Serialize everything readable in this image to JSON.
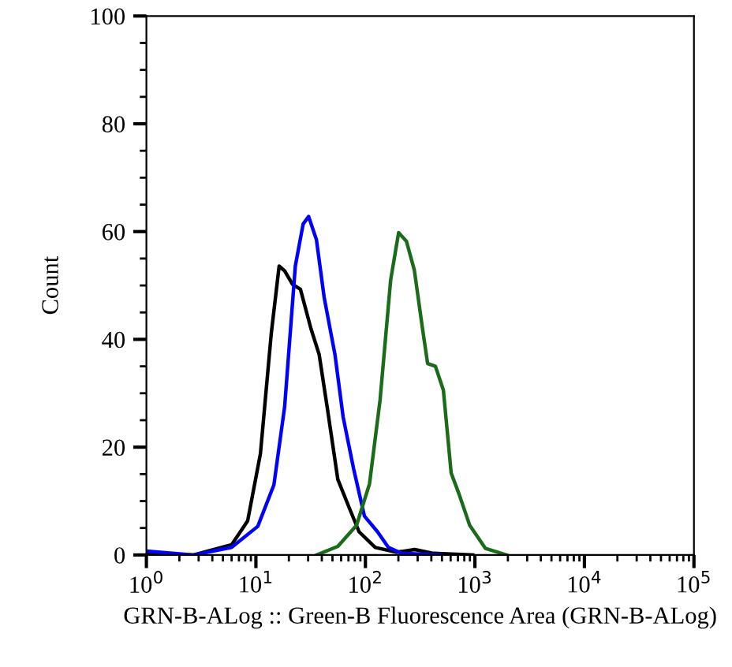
{
  "chart_data": {
    "type": "line",
    "xlabel": "GRN-B-ALog :: Green-B Fluorescence Area (GRN-B-ALog)",
    "ylabel": "Count",
    "log": "x",
    "xlim": [
      1,
      100000
    ],
    "ylim": [
      0,
      100
    ],
    "xticks": [
      {
        "value": 1,
        "label": "10$^{0}$"
      },
      {
        "value": 10,
        "label": "10$^{1}$"
      },
      {
        "value": 100,
        "label": "10$^{2}$"
      },
      {
        "value": 1000,
        "label": "10$^{3}$"
      },
      {
        "value": 10000,
        "label": "10$^{4}$"
      },
      {
        "value": 100000,
        "label": "10$^{5}$"
      }
    ],
    "yticks": [
      0,
      20,
      40,
      60,
      80,
      100
    ],
    "grid": false,
    "legend": false,
    "marker": "none",
    "line_style": "solid",
    "series": [
      {
        "color": "#000000",
        "x": [
          1,
          2.7,
          6.0,
          8.4,
          11,
          13.8,
          16.3,
          18.3,
          21.6,
          25.5,
          31.8,
          37.8,
          44.7,
          56,
          69.7,
          87.5,
          123,
          191,
          282,
          417,
          955
        ],
        "values": [
          0.3,
          0,
          1.9,
          6.3,
          18.8,
          41,
          53.6,
          52.7,
          50.2,
          49.3,
          42,
          37.2,
          27.5,
          14,
          9.2,
          4.3,
          1.4,
          0.5,
          1.0,
          0.3,
          0
        ]
      },
      {
        "color": "#0000ff",
        "x": [
          1,
          2.7,
          6.0,
          10.4,
          14.6,
          18.3,
          22.9,
          27,
          30.3,
          35.7,
          42,
          52.7,
          62.6,
          78,
          98,
          129,
          162,
          214,
          490
        ],
        "values": [
          0.7,
          0,
          1.4,
          5.3,
          13,
          27.5,
          53.6,
          61.4,
          62.8,
          58.5,
          47.8,
          37.2,
          25.6,
          16,
          7.2,
          4.3,
          1.4,
          0.3,
          0
        ]
      },
      {
        "color": "#1a6b1a",
        "x": [
          36,
          56,
          83,
          109,
          136,
          170,
          201,
          237,
          280,
          331,
          370,
          436,
          515,
          607,
          716,
          896,
          1250,
          1950
        ],
        "values": [
          0,
          1.6,
          5.5,
          13.2,
          28.7,
          51,
          59.8,
          58.2,
          52.8,
          42.2,
          35.5,
          35,
          30.6,
          15.2,
          11.3,
          5.5,
          1.2,
          0
        ]
      }
    ]
  }
}
